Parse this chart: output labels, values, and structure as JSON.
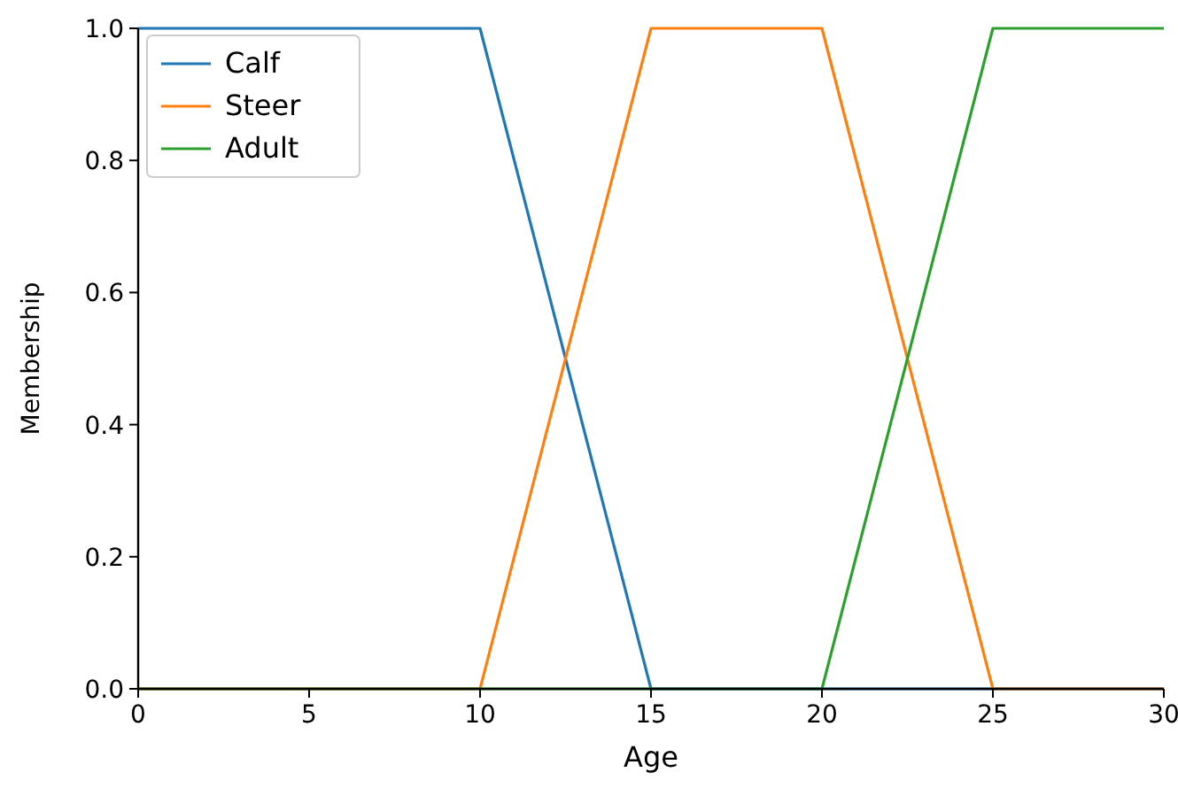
{
  "chart_data": {
    "type": "line",
    "xlabel": "Age",
    "ylabel": "Membership",
    "xlim": [
      0,
      30
    ],
    "ylim": [
      0,
      1.0
    ],
    "xticks": [
      0,
      5,
      10,
      15,
      20,
      25,
      30
    ],
    "yticks": [
      {
        "value": 0,
        "label": "0.0"
      },
      {
        "value": 0.2,
        "label": "0.2"
      },
      {
        "value": 0.4,
        "label": "0.4"
      },
      {
        "value": 0.6,
        "label": "0.6"
      },
      {
        "value": 0.8,
        "label": "0.8"
      },
      {
        "value": 1,
        "label": "1.0"
      }
    ],
    "legend": "top left",
    "grid": false,
    "marker": "none",
    "line_style": "solid",
    "series": [
      {
        "name": "Calf",
        "color": "#1f77b4",
        "x": [
          0,
          10,
          15,
          30
        ],
        "values": [
          1,
          1,
          0,
          0
        ]
      },
      {
        "name": "Steer",
        "color": "#ff7f0e",
        "x": [
          0,
          10,
          15,
          20,
          25,
          30
        ],
        "values": [
          0,
          0,
          1,
          1,
          0,
          0
        ]
      },
      {
        "name": "Adult",
        "color": "#2ca02c",
        "x": [
          0,
          20,
          25,
          30
        ],
        "values": [
          0,
          0,
          1,
          1
        ]
      }
    ]
  }
}
